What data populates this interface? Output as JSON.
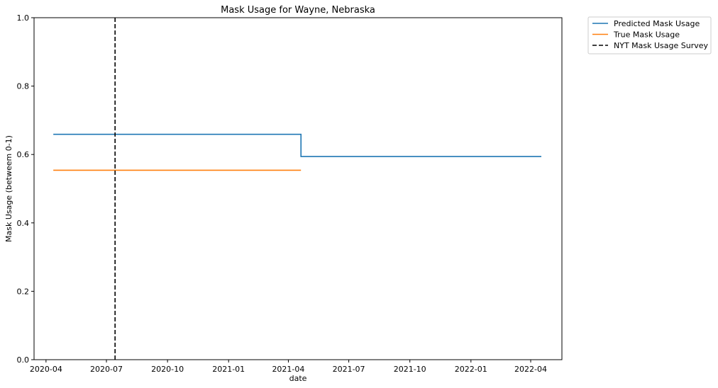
{
  "chart_data": {
    "type": "line",
    "title": "Mask Usage for Wayne, Nebraska",
    "xlabel": "date",
    "ylabel": "Mask Usage (betweem 0-1)",
    "xlim": [
      "2020-03-14",
      "2022-05-18"
    ],
    "ylim": [
      0,
      1
    ],
    "x_ticks": [
      "2020-04",
      "2020-07",
      "2020-10",
      "2021-01",
      "2021-04",
      "2021-07",
      "2021-10",
      "2022-01",
      "2022-04"
    ],
    "y_ticks": [
      "0.0",
      "0.2",
      "0.4",
      "0.6",
      "0.8",
      "1.0"
    ],
    "grid": false,
    "legend_position": "outside top-right",
    "series": [
      {
        "name": "Predicted Mask Usage",
        "color": "#1f77b4",
        "style": "solid",
        "points": [
          [
            "2020-04-12",
            0.659
          ],
          [
            "2021-04-20",
            0.659
          ],
          [
            "2021-04-20",
            0.594
          ],
          [
            "2022-04-17",
            0.594
          ]
        ]
      },
      {
        "name": "True Mask Usage",
        "color": "#ff7f0e",
        "style": "solid",
        "points": [
          [
            "2020-04-12",
            0.554
          ],
          [
            "2021-04-20",
            0.554
          ]
        ]
      },
      {
        "name": "NYT Mask Usage Survey",
        "color": "#000000",
        "style": "dashed",
        "vline_x": "2020-07-14"
      }
    ]
  }
}
